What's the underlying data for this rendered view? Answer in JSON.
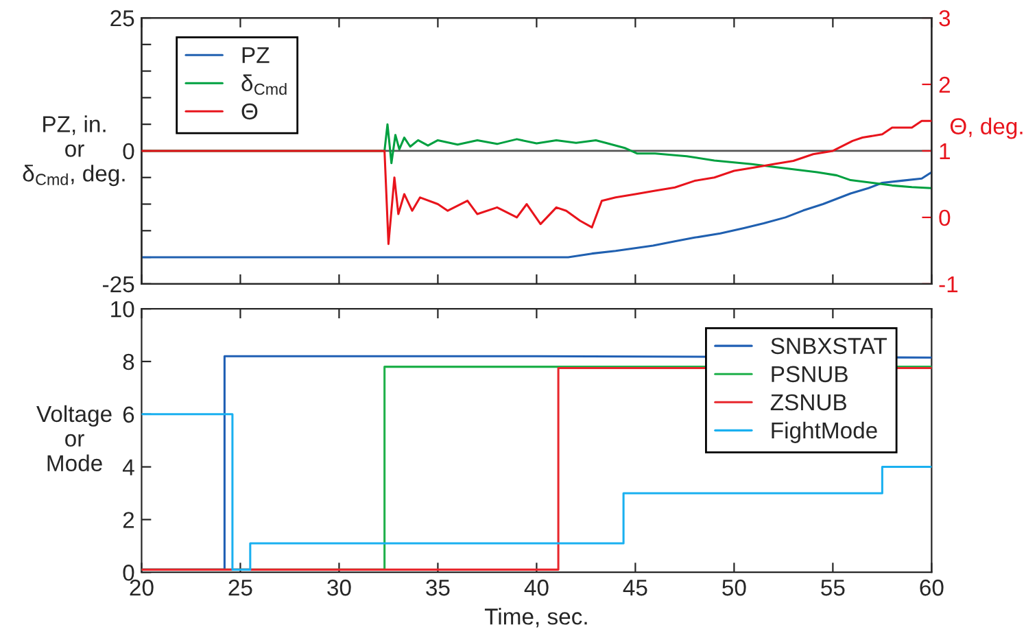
{
  "chart_data": [
    {
      "type": "line",
      "ylabel": "PZ, in.\nor\nδ$_{Cmd}$, deg.",
      "y2label": "Θ, deg.",
      "xlim": [
        20,
        60
      ],
      "xticks": [
        {
          "value": 20,
          "label": null
        },
        {
          "value": 25,
          "label": null
        },
        {
          "value": 30,
          "label": null
        },
        {
          "value": 35,
          "label": null
        },
        {
          "value": 40,
          "label": null
        },
        {
          "value": 45,
          "label": null
        },
        {
          "value": 50,
          "label": null
        },
        {
          "value": 55,
          "label": null
        },
        {
          "value": 60,
          "label": null
        }
      ],
      "ylim": [
        -25,
        25
      ],
      "yticks": [
        -25,
        {
          "value": -20,
          "label": null
        },
        {
          "value": -15,
          "label": null
        },
        {
          "value": -10,
          "label": null
        },
        {
          "value": -5,
          "label": null
        },
        0,
        {
          "value": 5,
          "label": null
        },
        {
          "value": 10,
          "label": null
        },
        {
          "value": 15,
          "label": null
        },
        {
          "value": 20,
          "label": null
        },
        25
      ],
      "y2lim": [
        -1,
        3
      ],
      "y2ticks": [
        -1,
        0,
        1,
        2,
        3
      ],
      "tick_labels": "y",
      "legend": "top left",
      "grid": false,
      "ref_lines": [
        {
          "axis": "y",
          "value": 0,
          "color": "#555555"
        }
      ],
      "series": [
        {
          "name": "PZ",
          "color": "#2060b0",
          "x": [
            20,
            30,
            41.6,
            42.8,
            44,
            45.9,
            47,
            48,
            49.3,
            50.5,
            51.5,
            52.6,
            53.5,
            54.5,
            55.9,
            56.8,
            57.5,
            58.5,
            59.5,
            60
          ],
          "values": [
            -20,
            -20,
            -20,
            -19.3,
            -18.8,
            -17.8,
            -17,
            -16.3,
            -15.5,
            -14.5,
            -13.6,
            -12.5,
            -11.2,
            -10,
            -8,
            -7,
            -6,
            -5.6,
            -5.2,
            -4
          ]
        },
        {
          "name": "δ$_{Cmd}$",
          "color": "#00a040",
          "x": [
            20,
            32.3,
            32.45,
            32.65,
            32.85,
            33.05,
            33.3,
            33.6,
            34,
            34.5,
            35,
            36,
            37,
            38,
            39,
            40,
            41,
            42,
            43,
            43.5,
            44.5,
            45.1,
            46,
            47.6,
            49,
            50.9,
            52,
            54.2,
            55.2,
            55.9,
            57,
            58,
            59,
            60
          ],
          "values": [
            0,
            0,
            5,
            -2.3,
            3,
            0.3,
            2.5,
            0.8,
            2,
            1,
            2,
            1.2,
            2,
            1.3,
            2.2,
            1.4,
            2,
            1.5,
            2,
            1.5,
            0.5,
            -0.5,
            -0.5,
            -1,
            -1.8,
            -2.5,
            -3,
            -4,
            -4.6,
            -5.5,
            -6,
            -6.5,
            -6.8,
            -7
          ]
        },
        {
          "name": "Θ",
          "color": "#e8141c",
          "axis": "y2",
          "x": [
            20,
            32.3,
            32.5,
            32.8,
            33.0,
            33.3,
            33.7,
            34.1,
            35,
            35.5,
            36.5,
            37,
            38,
            39,
            39.5,
            40.2,
            41,
            41.5,
            42.2,
            42.8,
            43.3,
            44,
            45,
            46,
            47,
            48,
            49,
            50,
            51,
            52,
            53,
            54,
            55,
            56,
            56.5,
            57.5,
            58,
            59,
            59.5,
            60
          ],
          "values": [
            1,
            1,
            -0.4,
            0.6,
            0.05,
            0.35,
            0.1,
            0.3,
            0.2,
            0.1,
            0.25,
            0.05,
            0.15,
            0.0,
            0.2,
            -0.1,
            0.15,
            0.1,
            -0.05,
            -0.15,
            0.25,
            0.3,
            0.35,
            0.4,
            0.45,
            0.55,
            0.6,
            0.7,
            0.75,
            0.8,
            0.85,
            0.95,
            1.0,
            1.15,
            1.2,
            1.25,
            1.35,
            1.35,
            1.45,
            1.45
          ]
        }
      ]
    },
    {
      "type": "line",
      "xlabel": "Time, sec.",
      "ylabel": "Voltage\nor\nMode",
      "xlim": [
        20,
        60
      ],
      "xticks": [
        20,
        25,
        30,
        35,
        40,
        45,
        50,
        55,
        60
      ],
      "ylim": [
        0,
        10
      ],
      "yticks": [
        0,
        2,
        4,
        6,
        8,
        10
      ],
      "legend": "top right",
      "grid": false,
      "series": [
        {
          "name": "SNBXSTAT",
          "color": "#1f5fb4",
          "x": [
            20,
            24.2,
            24.2,
            40,
            60
          ],
          "values": [
            0.1,
            0.1,
            8.2,
            8.2,
            8.15
          ]
        },
        {
          "name": "PSNUB",
          "color": "#1fb04a",
          "x": [
            20,
            32.3,
            32.3,
            60
          ],
          "values": [
            0.1,
            0.1,
            7.8,
            7.8
          ]
        },
        {
          "name": "ZSNUB",
          "color": "#e8262c",
          "x": [
            20,
            41.1,
            41.1,
            60
          ],
          "values": [
            0.1,
            0.1,
            7.75,
            7.75
          ]
        },
        {
          "name": "FightMode",
          "color": "#1ab0f0",
          "x": [
            20,
            24.6,
            24.6,
            25.5,
            25.5,
            44.4,
            44.4,
            57.5,
            57.5,
            60
          ],
          "values": [
            6,
            6,
            0.1,
            0.1,
            1.1,
            1.1,
            3,
            3,
            4,
            4
          ]
        }
      ]
    }
  ]
}
